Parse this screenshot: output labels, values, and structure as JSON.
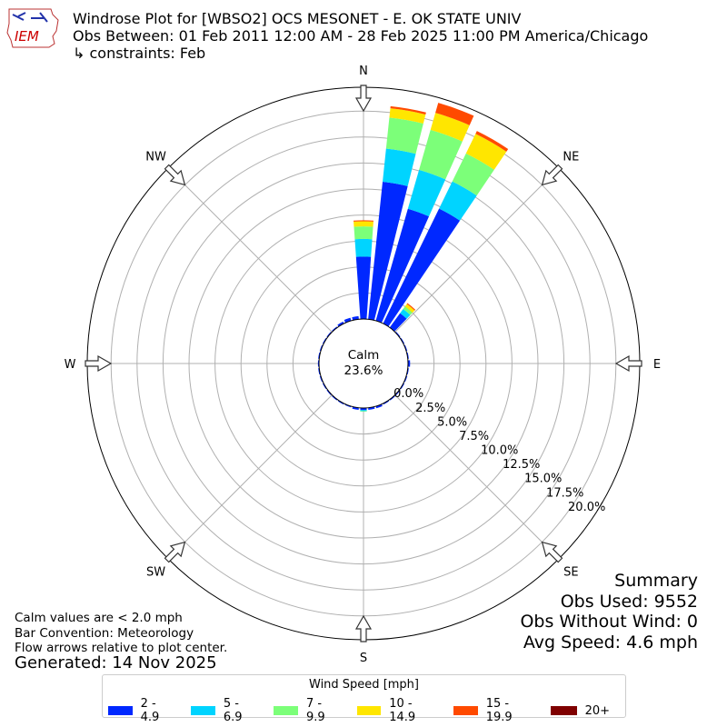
{
  "header": {
    "title_line1": "Windrose Plot for [WBSO2] OCS MESONET - E. OK STATE UNIV",
    "title_line2": "Obs Between: 01 Feb 2011 12:00 AM - 28 Feb 2025 11:00 PM America/Chicago",
    "title_line3": "↳ constraints: Feb",
    "logo_text": "IEM"
  },
  "summary": {
    "heading": "Summary",
    "obs_used": "Obs Used: 9552",
    "obs_without_wind": "Obs Without Wind: 0",
    "avg_speed": "Avg Speed: 4.6 mph"
  },
  "notes": {
    "calm": "Calm values are < 2.0 mph",
    "convention": "Bar Convention: Meteorology",
    "flow": "Flow arrows relative to plot center.",
    "generated": "Generated: 14 Nov 2025"
  },
  "chart_data": {
    "type": "windrose",
    "calm_label": "Calm",
    "calm_value": "23.6%",
    "compass_labels": [
      "N",
      "NE",
      "E",
      "SE",
      "S",
      "SW",
      "W",
      "NW"
    ],
    "radial_ticks": [
      "0.0%",
      "2.5%",
      "5.0%",
      "7.5%",
      "10.0%",
      "12.5%",
      "15.0%",
      "17.5%",
      "20.0%"
    ],
    "radial_max": 21.9,
    "grid": true,
    "legend_title": "Wind Speed [mph]",
    "legend_placement": "bottom",
    "directions_deg": [
      0,
      10,
      20,
      30,
      40,
      50,
      60,
      70,
      80,
      90,
      100,
      110,
      120,
      130,
      140,
      150,
      160,
      170,
      180,
      190,
      200,
      210,
      220,
      230,
      240,
      250,
      260,
      270,
      280,
      290,
      300,
      310,
      320,
      330,
      340,
      350
    ],
    "series": [
      {
        "name": "2 - 4.9",
        "color": "#0028ff",
        "values": [
          6.0,
          13.3,
          11.2,
          12.3,
          1.7,
          0.1,
          0.1,
          0.1,
          0.1,
          0.2,
          0.1,
          0.1,
          0.1,
          0.1,
          0.1,
          0.1,
          0.2,
          0.2,
          0.2,
          0.2,
          0.1,
          0.1,
          0.1,
          0.1,
          0.1,
          0.1,
          0.1,
          0.1,
          0.1,
          0.1,
          0.1,
          0.1,
          0.1,
          0.2,
          0.3,
          0.3
        ]
      },
      {
        "name": "5 - 6.9",
        "color": "#00d4ff",
        "values": [
          1.7,
          3.2,
          3.9,
          2.9,
          0.5,
          0,
          0,
          0,
          0,
          0,
          0,
          0,
          0,
          0,
          0,
          0,
          0,
          0,
          0.1,
          0,
          0,
          0,
          0,
          0,
          0,
          0,
          0,
          0,
          0,
          0,
          0,
          0,
          0,
          0,
          0,
          0
        ]
      },
      {
        "name": "7 - 9.9",
        "color": "#7cff79",
        "values": [
          1.2,
          3.0,
          4.0,
          3.0,
          0.3,
          0,
          0,
          0,
          0,
          0,
          0,
          0,
          0,
          0,
          0,
          0,
          0,
          0,
          0.05,
          0,
          0,
          0,
          0,
          0,
          0,
          0,
          0,
          0,
          0,
          0,
          0,
          0,
          0,
          0,
          0,
          0
        ]
      },
      {
        "name": "10 - 14.9",
        "color": "#ffe600",
        "values": [
          0.5,
          0.9,
          1.7,
          2.1,
          0.3,
          0,
          0,
          0,
          0,
          0,
          0,
          0,
          0,
          0,
          0,
          0,
          0,
          0,
          0,
          0,
          0,
          0,
          0,
          0,
          0,
          0,
          0,
          0,
          0,
          0,
          0,
          0,
          0,
          0,
          0,
          0
        ]
      },
      {
        "name": "15 - 19.9",
        "color": "#ff4a00",
        "values": [
          0.1,
          0.2,
          1.0,
          0.3,
          0.1,
          0,
          0,
          0,
          0,
          0,
          0,
          0,
          0,
          0,
          0,
          0,
          0,
          0,
          0,
          0,
          0,
          0,
          0,
          0,
          0,
          0,
          0,
          0,
          0,
          0,
          0,
          0,
          0,
          0,
          0,
          0
        ]
      },
      {
        "name": "20+",
        "color": "#7f0000",
        "values": [
          0,
          0,
          0,
          0,
          0,
          0,
          0,
          0,
          0,
          0,
          0,
          0,
          0,
          0,
          0,
          0,
          0,
          0,
          0,
          0,
          0,
          0,
          0,
          0,
          0,
          0,
          0,
          0,
          0,
          0,
          0,
          0,
          0,
          0,
          0,
          0
        ]
      }
    ]
  }
}
